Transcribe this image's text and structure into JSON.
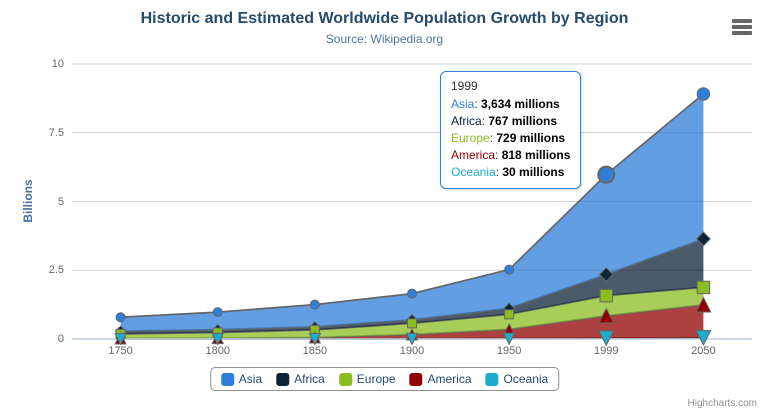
{
  "chart": {
    "title": "Historic and Estimated Worldwide Population Growth by Region",
    "subtitle": "Source: Wikipedia.org"
  },
  "axes": {
    "y": {
      "title": "Billions",
      "ticks": [
        "0",
        "2.5",
        "5",
        "7.5",
        "10"
      ],
      "min": 0,
      "max": 10
    },
    "x": {
      "categories": [
        "1750",
        "1800",
        "1850",
        "1900",
        "1950",
        "1999",
        "2050"
      ]
    }
  },
  "chart_data": {
    "type": "area",
    "stacking": "normal",
    "title": "Historic and Estimated Worldwide Population Growth by Region",
    "subtitle": "Source: Wikipedia.org",
    "xlabel": "",
    "ylabel": "Billions",
    "unit": "millions",
    "ylim": [
      0,
      10
    ],
    "grid": true,
    "legend_position": "bottom",
    "categories": [
      "1750",
      "1800",
      "1850",
      "1900",
      "1950",
      "1999",
      "2050"
    ],
    "series": [
      {
        "name": "Asia",
        "color": "#2f7ed8",
        "marker": "circle",
        "values": [
          502,
          635,
          809,
          947,
          1402,
          3634,
          5268
        ]
      },
      {
        "name": "Africa",
        "color": "#0d233a",
        "marker": "diamond",
        "values": [
          106,
          107,
          111,
          133,
          221,
          767,
          1766
        ]
      },
      {
        "name": "Europe",
        "color": "#8bbc21",
        "marker": "square",
        "values": [
          163,
          203,
          276,
          408,
          547,
          729,
          628
        ]
      },
      {
        "name": "America",
        "color": "#910000",
        "marker": "triangle",
        "values": [
          18,
          31,
          54,
          156,
          339,
          818,
          1201
        ]
      },
      {
        "name": "Oceania",
        "color": "#1aadce",
        "marker": "triangle-down",
        "values": [
          2,
          2,
          2,
          6,
          13,
          30,
          46
        ]
      }
    ]
  },
  "tooltip": {
    "header": "1999",
    "rows": [
      {
        "name": "Asia",
        "color": "#2f7ed8",
        "value": "3,634 millions"
      },
      {
        "name": "Africa",
        "color": "#0d233a",
        "value": "767 millions"
      },
      {
        "name": "Europe",
        "color": "#8bbc21",
        "value": "729 millions"
      },
      {
        "name": "America",
        "color": "#910000",
        "value": "818 millions"
      },
      {
        "name": "Oceania",
        "color": "#1aadce",
        "value": "30 millions"
      }
    ]
  },
  "legend": {
    "items": [
      {
        "label": "Asia",
        "color": "#2f7ed8"
      },
      {
        "label": "Africa",
        "color": "#0d233a"
      },
      {
        "label": "Europe",
        "color": "#8bbc21"
      },
      {
        "label": "America",
        "color": "#910000"
      },
      {
        "label": "Oceania",
        "color": "#1aadce"
      }
    ]
  },
  "credits": {
    "text": "Highcharts.com"
  },
  "colors": {
    "edge_line": "#666666",
    "grid_line": "#d0d0d0",
    "x_axis_line": "#c0d0e0",
    "title_text": "#274b6d",
    "subtitle_text": "#4d759e",
    "tick_label": "#666666",
    "y_axis_title": "#4572a7",
    "legend_text": "#274b6d",
    "tooltip_border": "#2f7ed8",
    "credits_text": "#909090"
  }
}
